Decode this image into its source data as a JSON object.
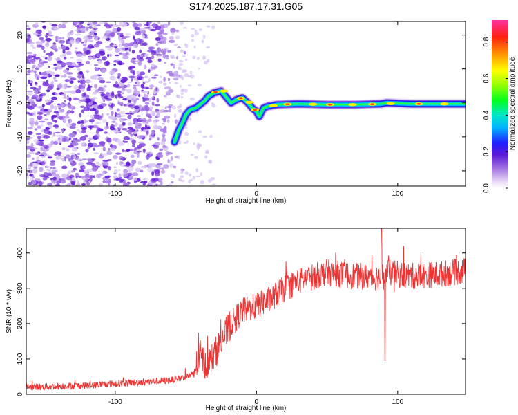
{
  "title": "S174.2025.187.17.31.G05",
  "chart_data": [
    {
      "type": "heatmap",
      "xlabel": "Height of straight line (km)",
      "ylabel": "Frequency (Hz)",
      "xlim": [
        -163,
        148
      ],
      "ylim": [
        -24.5,
        24
      ],
      "xticks": [
        -100,
        0,
        100
      ],
      "yticks": [
        -20,
        -10,
        0,
        10,
        20
      ],
      "colorbar": {
        "label": "Normalized spectral amplitude",
        "range": [
          0,
          0.92
        ],
        "ticks": [
          0.0,
          0.2,
          0.4,
          0.6,
          0.8
        ]
      },
      "ridge_track": [
        {
          "x": -58,
          "y": -11.5
        },
        {
          "x": -55,
          "y": -8
        },
        {
          "x": -52,
          "y": -5.5
        },
        {
          "x": -50,
          "y": -3.5
        },
        {
          "x": -47,
          "y": -2
        },
        {
          "x": -43,
          "y": -1.5
        },
        {
          "x": -40,
          "y": -0.5
        },
        {
          "x": -37,
          "y": 0.5
        },
        {
          "x": -34,
          "y": 2
        },
        {
          "x": -30,
          "y": 3
        },
        {
          "x": -25,
          "y": 3.5
        },
        {
          "x": -21,
          "y": 1.5
        },
        {
          "x": -18,
          "y": 0
        },
        {
          "x": -14,
          "y": 1
        },
        {
          "x": -10,
          "y": 1.5
        },
        {
          "x": -6,
          "y": 0
        },
        {
          "x": -3,
          "y": -1.5
        },
        {
          "x": 0,
          "y": -2.5
        },
        {
          "x": 2,
          "y": -4
        },
        {
          "x": 5,
          "y": -1.5
        },
        {
          "x": 8,
          "y": -1
        },
        {
          "x": 15,
          "y": -0.5
        },
        {
          "x": 30,
          "y": -0.3
        },
        {
          "x": 50,
          "y": -0.5
        },
        {
          "x": 70,
          "y": -0.5
        },
        {
          "x": 88,
          "y": -0.3
        },
        {
          "x": 92,
          "y": 0
        },
        {
          "x": 110,
          "y": -0.3
        },
        {
          "x": 130,
          "y": -0.3
        },
        {
          "x": 148,
          "y": -0.3
        }
      ]
    },
    {
      "type": "line",
      "xlabel": "Height of straight line (km)",
      "ylabel": "SNR (10 * v/v)",
      "xlim": [
        -163,
        148
      ],
      "ylim": [
        0,
        470
      ],
      "xticks": [
        -100,
        0,
        100
      ],
      "yticks": [
        0,
        100,
        200,
        300,
        400
      ],
      "series_color": "#ee3333",
      "series_envelope": [
        {
          "x": -163,
          "y": 20
        },
        {
          "x": -120,
          "y": 25
        },
        {
          "x": -80,
          "y": 35
        },
        {
          "x": -60,
          "y": 40
        },
        {
          "x": -45,
          "y": 55
        },
        {
          "x": -40,
          "y": 110
        },
        {
          "x": -35,
          "y": 80
        },
        {
          "x": -30,
          "y": 110
        },
        {
          "x": -25,
          "y": 150
        },
        {
          "x": -18,
          "y": 200
        },
        {
          "x": -10,
          "y": 235
        },
        {
          "x": 0,
          "y": 250
        },
        {
          "x": 10,
          "y": 270
        },
        {
          "x": 20,
          "y": 300
        },
        {
          "x": 30,
          "y": 320
        },
        {
          "x": 50,
          "y": 345
        },
        {
          "x": 70,
          "y": 335
        },
        {
          "x": 88,
          "y": 330
        },
        {
          "x": 92,
          "y": 345
        },
        {
          "x": 110,
          "y": 335
        },
        {
          "x": 130,
          "y": 340
        },
        {
          "x": 148,
          "y": 350
        }
      ]
    }
  ]
}
